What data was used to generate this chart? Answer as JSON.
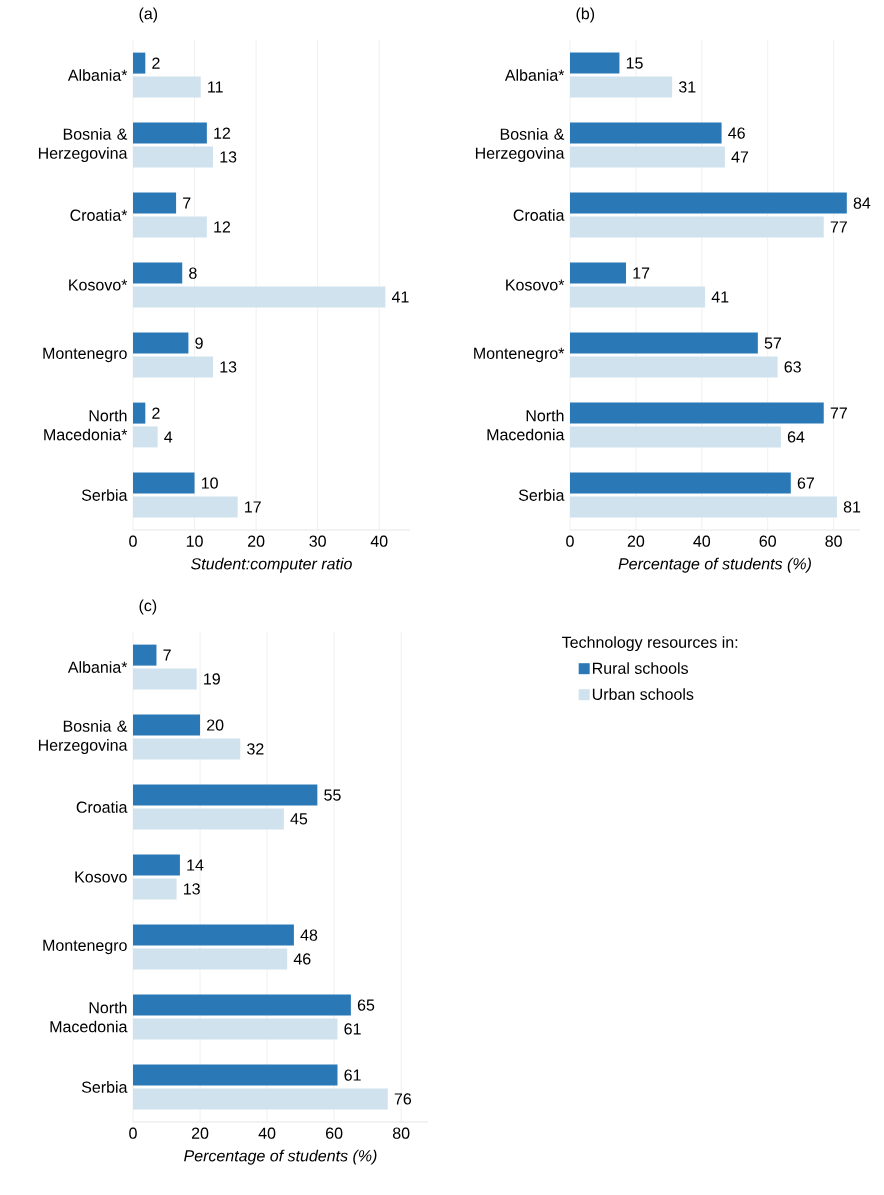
{
  "chart_data": [
    {
      "type": "bar",
      "orientation": "horizontal",
      "title": "(a)",
      "xlabel": "Student:computer ratio",
      "categories": [
        "Albania*",
        "Bosnia & Herzegovina",
        "Croatia*",
        "Kosovo*",
        "Montenegro",
        "North Macedonia*",
        "Serbia"
      ],
      "series": [
        {
          "color": "#2a78b6",
          "values": [
            2,
            12,
            7,
            8,
            9,
            2,
            10
          ]
        },
        {
          "color": "#cfe2ed",
          "values": [
            11,
            13,
            12,
            41,
            13,
            4,
            17
          ]
        }
      ],
      "xlim": [
        0,
        45
      ],
      "xticks": [
        0,
        10,
        20,
        30,
        40
      ],
      "grid": "x",
      "data_labels": true
    },
    {
      "type": "bar",
      "orientation": "horizontal",
      "title": "(b)",
      "xlabel": "Percentage of students (%)",
      "categories": [
        "Albania*",
        "Bosnia & Herzegovina",
        "Croatia",
        "Kosovo*",
        "Montenegro*",
        "North Macedonia",
        "Serbia"
      ],
      "series": [
        {
          "color": "#2a78b6",
          "values": [
            15,
            46,
            84,
            17,
            57,
            77,
            67
          ]
        },
        {
          "color": "#cfe2ed",
          "values": [
            31,
            47,
            77,
            41,
            63,
            64,
            81
          ]
        }
      ],
      "xlim": [
        0,
        88
      ],
      "xticks": [
        0,
        20,
        40,
        60,
        80
      ],
      "grid": "x",
      "data_labels": true
    },
    {
      "type": "bar",
      "orientation": "horizontal",
      "title": "(c)",
      "xlabel": "Percentage of students (%)",
      "categories": [
        "Albania*",
        "Bosnia & Herzegovina",
        "Croatia",
        "Kosovo",
        "Montenegro",
        "North Macedonia",
        "Serbia"
      ],
      "series": [
        {
          "name": "Rural schools",
          "color": "#2a78b6",
          "values": [
            7,
            20,
            55,
            14,
            48,
            65,
            61
          ]
        },
        {
          "name": "Urban schools",
          "color": "#cfe2ed",
          "values": [
            19,
            32,
            45,
            13,
            46,
            61,
            76
          ]
        }
      ],
      "xlim": [
        0,
        88
      ],
      "xticks": [
        0,
        20,
        40,
        60,
        80
      ],
      "grid": "x",
      "data_labels": true,
      "legend": "right",
      "legend_title": "Technology resources in:"
    }
  ]
}
